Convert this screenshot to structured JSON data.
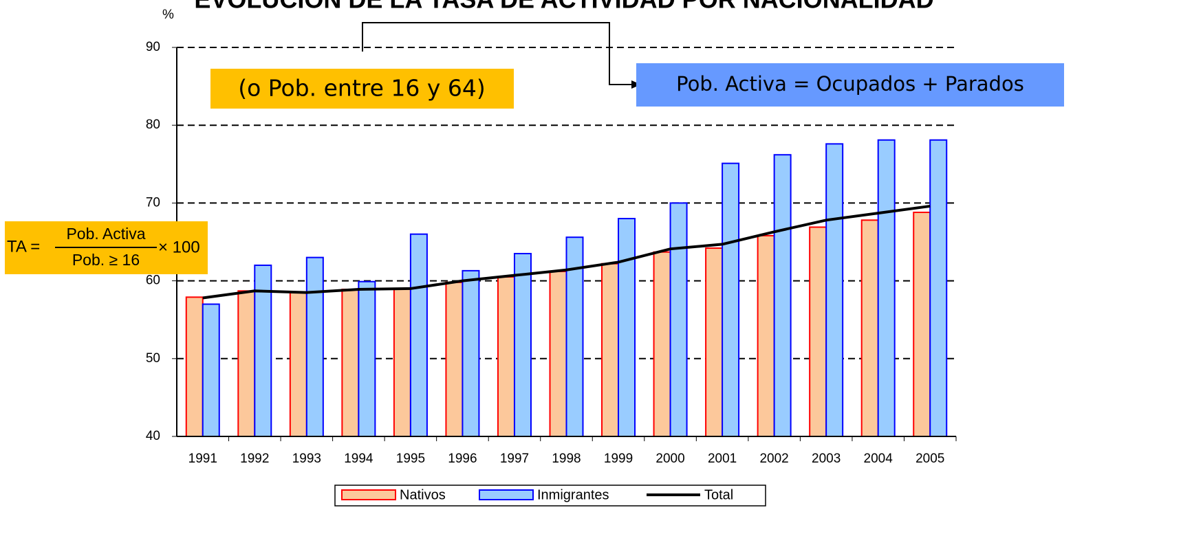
{
  "chart_data": {
    "type": "bar",
    "title": "EVOLUCIÓN DE LA TASA DE ACTIVIDAD POR NACIONALIDAD",
    "y_label": "%",
    "categories": [
      "1991",
      "1992",
      "1993",
      "1994",
      "1995",
      "1996",
      "1997",
      "1998",
      "1999",
      "2000",
      "2001",
      "2002",
      "2003",
      "2004",
      "2005"
    ],
    "series": [
      {
        "name": "Nativos",
        "color": "#fcc89b",
        "stroke": "#ff0000",
        "values": [
          57.9,
          58.7,
          58.5,
          58.9,
          59.0,
          59.8,
          60.5,
          61.2,
          62.2,
          63.7,
          64.2,
          65.8,
          66.9,
          67.8,
          68.8
        ]
      },
      {
        "name": "Inmigrantes",
        "color": "#99ccff",
        "stroke": "#0000ff",
        "values": [
          57.0,
          62.0,
          63.0,
          59.9,
          66.0,
          61.3,
          63.5,
          65.6,
          68.0,
          70.0,
          75.1,
          76.2,
          77.6,
          78.1,
          78.1
        ]
      },
      {
        "name": "Total",
        "type": "line",
        "color": "#000000",
        "values": [
          57.8,
          58.7,
          58.5,
          58.9,
          59.0,
          60.0,
          60.7,
          61.4,
          62.4,
          64.1,
          64.7,
          66.3,
          67.8,
          68.7,
          69.6
        ]
      }
    ],
    "ylim": [
      40,
      90
    ],
    "yticks": [
      40,
      50,
      60,
      70,
      80,
      90
    ],
    "grid": true
  },
  "annotations": {
    "age_note": "(o Pob. entre 16 y 64)",
    "active_definition": "Pob. Activa = Ocupados + Parados",
    "formula": {
      "lhs": "TA =",
      "numerator": "Pob. Activa",
      "denominator": "Pob. ≥ 16",
      "multiplier": "× 100"
    }
  }
}
